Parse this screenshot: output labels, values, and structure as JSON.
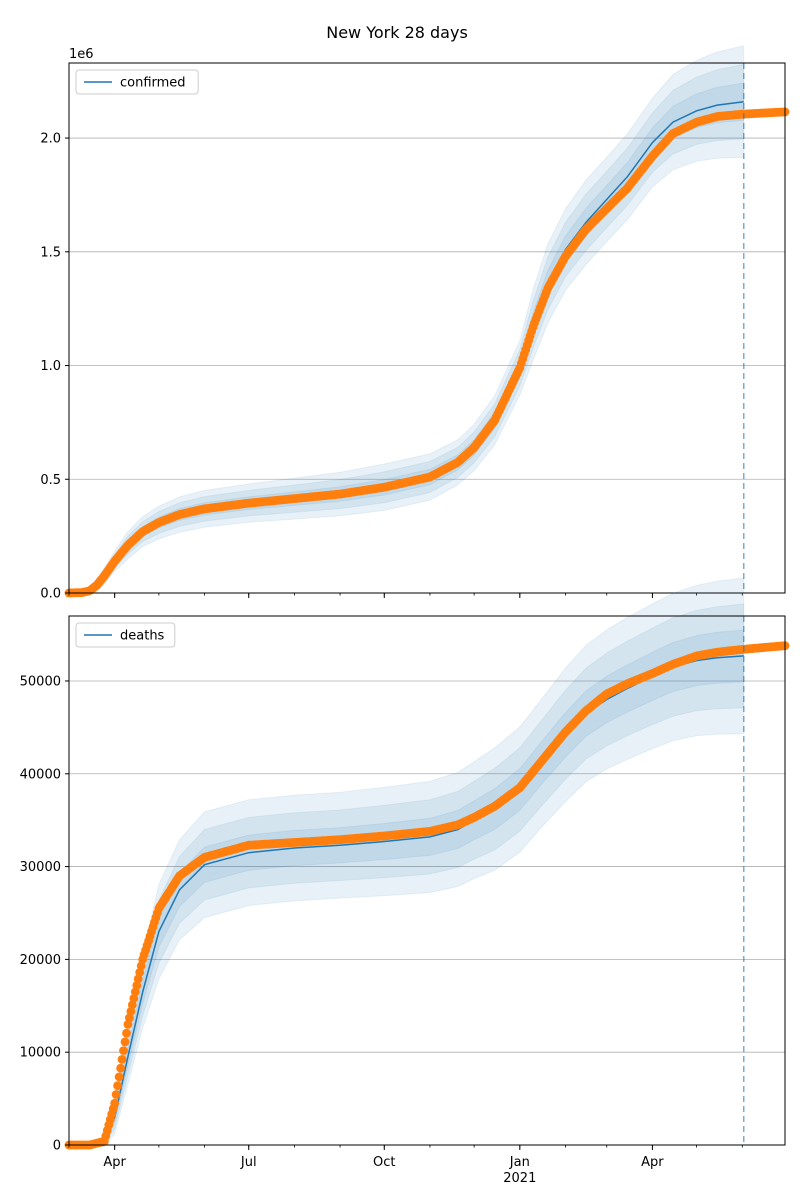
{
  "figure": {
    "title": "New York 28 days"
  },
  "chart_data": [
    {
      "type": "line",
      "legend": "top-left",
      "grid": "y",
      "offset_label": "1e6",
      "xlim": [
        "2020-03-01",
        "2021-06-30"
      ],
      "ylim": [
        0,
        2.33
      ],
      "y_ticks": [
        0.0,
        0.5,
        1.0,
        1.5,
        2.0
      ],
      "y_tick_labels": [
        "0.0",
        "0.5",
        "1.0",
        "1.5",
        "2.0"
      ],
      "x_ticks": [
        "2020-04-01",
        "2020-07-01",
        "2020-10-01",
        "2021-01-01",
        "2021-04-01"
      ],
      "x_tick_labels": [],
      "forecast_line": "2021-06-02",
      "series": [
        {
          "name": "confirmed",
          "kind": "model",
          "color": "#1f77b4",
          "x": [
            "2020-03-01",
            "2020-03-10",
            "2020-03-15",
            "2020-03-20",
            "2020-03-25",
            "2020-04-01",
            "2020-04-10",
            "2020-04-20",
            "2020-05-01",
            "2020-05-15",
            "2020-06-01",
            "2020-07-01",
            "2020-08-01",
            "2020-09-01",
            "2020-10-01",
            "2020-11-01",
            "2020-11-20",
            "2020-12-01",
            "2020-12-15",
            "2021-01-01",
            "2021-01-10",
            "2021-01-20",
            "2021-02-01",
            "2021-02-15",
            "2021-03-01",
            "2021-03-15",
            "2021-04-01",
            "2021-04-15",
            "2021-05-01",
            "2021-05-15",
            "2021-06-02"
          ],
          "y": [
            0.0,
            0.002,
            0.01,
            0.035,
            0.075,
            0.14,
            0.21,
            0.27,
            0.31,
            0.345,
            0.37,
            0.395,
            0.415,
            0.435,
            0.465,
            0.51,
            0.575,
            0.64,
            0.76,
            0.99,
            1.18,
            1.36,
            1.51,
            1.63,
            1.73,
            1.83,
            1.98,
            2.07,
            2.12,
            2.145,
            2.16
          ],
          "band_sigma": [
            0.0,
            0.001,
            0.004,
            0.01,
            0.012,
            0.015,
            0.02,
            0.022,
            0.024,
            0.026,
            0.027,
            0.028,
            0.03,
            0.032,
            0.034,
            0.034,
            0.033,
            0.034,
            0.036,
            0.04,
            0.052,
            0.058,
            0.06,
            0.062,
            0.062,
            0.063,
            0.065,
            0.07,
            0.074,
            0.078,
            0.082
          ]
        },
        {
          "name": "",
          "kind": "observed",
          "color": "#ff7f0e",
          "x": [
            "2020-03-01",
            "2020-03-10",
            "2020-03-15",
            "2020-03-20",
            "2020-03-25",
            "2020-04-01",
            "2020-04-10",
            "2020-04-20",
            "2020-05-01",
            "2020-05-15",
            "2020-06-01",
            "2020-07-01",
            "2020-08-01",
            "2020-09-01",
            "2020-10-01",
            "2020-11-01",
            "2020-11-20",
            "2020-12-01",
            "2020-12-15",
            "2021-01-01",
            "2021-01-10",
            "2021-01-20",
            "2021-02-01",
            "2021-02-15",
            "2021-03-01",
            "2021-03-15",
            "2021-04-01",
            "2021-04-15",
            "2021-05-01",
            "2021-05-15",
            "2021-06-01",
            "2021-06-15",
            "2021-06-30"
          ],
          "y": [
            0.0,
            0.002,
            0.01,
            0.035,
            0.075,
            0.14,
            0.21,
            0.27,
            0.31,
            0.345,
            0.37,
            0.395,
            0.415,
            0.435,
            0.465,
            0.51,
            0.575,
            0.64,
            0.76,
            0.99,
            1.17,
            1.34,
            1.48,
            1.6,
            1.69,
            1.78,
            1.92,
            2.02,
            2.07,
            2.095,
            2.105,
            2.11,
            2.115
          ],
          "band_sigma": []
        }
      ]
    },
    {
      "type": "line",
      "legend": "top-left",
      "grid": "y",
      "offset_label": "",
      "xlim": [
        "2020-03-01",
        "2021-06-30"
      ],
      "ylim": [
        0,
        57000
      ],
      "y_ticks": [
        0,
        10000,
        20000,
        30000,
        40000,
        50000
      ],
      "y_tick_labels": [
        "0",
        "10000",
        "20000",
        "30000",
        "40000",
        "50000"
      ],
      "x_ticks": [
        "2020-04-01",
        "2020-07-01",
        "2020-10-01",
        "2021-01-01",
        "2021-04-01"
      ],
      "x_tick_labels": [
        "Apr",
        "Jul",
        "Oct",
        "Jan\n2021",
        "Apr"
      ],
      "forecast_line": "2021-06-02",
      "series": [
        {
          "name": "deaths",
          "kind": "model",
          "color": "#1f77b4",
          "x": [
            "2020-03-01",
            "2020-03-15",
            "2020-03-25",
            "2020-04-01",
            "2020-04-10",
            "2020-04-20",
            "2020-05-01",
            "2020-05-15",
            "2020-06-01",
            "2020-07-01",
            "2020-08-01",
            "2020-09-01",
            "2020-10-01",
            "2020-11-01",
            "2020-11-20",
            "2020-12-01",
            "2020-12-15",
            "2021-01-01",
            "2021-01-15",
            "2021-02-01",
            "2021-02-15",
            "2021-03-01",
            "2021-03-15",
            "2021-04-01",
            "2021-04-15",
            "2021-05-01",
            "2021-05-15",
            "2021-06-02"
          ],
          "y": [
            0,
            0,
            400,
            3000,
            9500,
            16500,
            23000,
            27500,
            30200,
            31500,
            32000,
            32300,
            32700,
            33200,
            34000,
            35000,
            36200,
            38300,
            41000,
            44200,
            46500,
            48000,
            49200,
            50500,
            51500,
            52200,
            52500,
            52700
          ],
          "band_sigma": [
            0,
            0,
            200,
            600,
            1000,
            1300,
            1700,
            1800,
            1900,
            1900,
            1900,
            1900,
            1950,
            2000,
            2050,
            2100,
            2200,
            2250,
            2300,
            2400,
            2450,
            2500,
            2550,
            2600,
            2650,
            2700,
            2750,
            2800
          ]
        },
        {
          "name": "",
          "kind": "observed",
          "color": "#ff7f0e",
          "x": [
            "2020-03-01",
            "2020-03-15",
            "2020-03-25",
            "2020-04-01",
            "2020-04-10",
            "2020-04-20",
            "2020-05-01",
            "2020-05-15",
            "2020-06-01",
            "2020-07-01",
            "2020-08-01",
            "2020-09-01",
            "2020-10-01",
            "2020-11-01",
            "2020-11-20",
            "2020-12-01",
            "2020-12-15",
            "2021-01-01",
            "2021-01-15",
            "2021-02-01",
            "2021-02-15",
            "2021-03-01",
            "2021-03-15",
            "2021-04-01",
            "2021-04-15",
            "2021-05-01",
            "2021-05-15",
            "2021-06-01",
            "2021-06-15",
            "2021-06-30"
          ],
          "y": [
            0,
            0,
            400,
            4500,
            13000,
            20000,
            25500,
            29000,
            31000,
            32300,
            32600,
            32900,
            33300,
            33800,
            34500,
            35300,
            36500,
            38500,
            41200,
            44500,
            46800,
            48600,
            49700,
            50800,
            51800,
            52700,
            53100,
            53400,
            53600,
            53800
          ],
          "band_sigma": []
        }
      ]
    }
  ]
}
